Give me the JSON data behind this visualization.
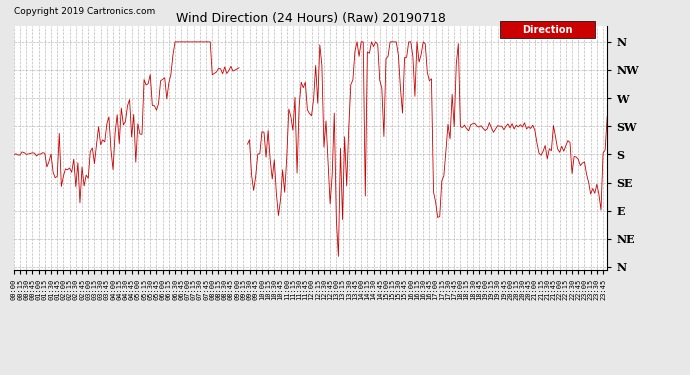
{
  "title": "Wind Direction (24 Hours) (Raw) 20190718",
  "copyright": "Copyright 2019 Cartronics.com",
  "line_color": "#cc0000",
  "background_color": "#e8e8e8",
  "plot_bg_color": "#ffffff",
  "grid_color": "#aaaaaa",
  "ytick_labels": [
    "N",
    "NW",
    "W",
    "SW",
    "S",
    "SE",
    "E",
    "NE",
    "N"
  ],
  "ytick_values": [
    360,
    315,
    270,
    225,
    180,
    135,
    90,
    45,
    0
  ],
  "ylim": [
    -5,
    385
  ],
  "legend_label": "Direction",
  "legend_bg": "#cc0000",
  "legend_text_color": "#ffffff",
  "figsize": [
    6.9,
    3.75
  ],
  "dpi": 100
}
